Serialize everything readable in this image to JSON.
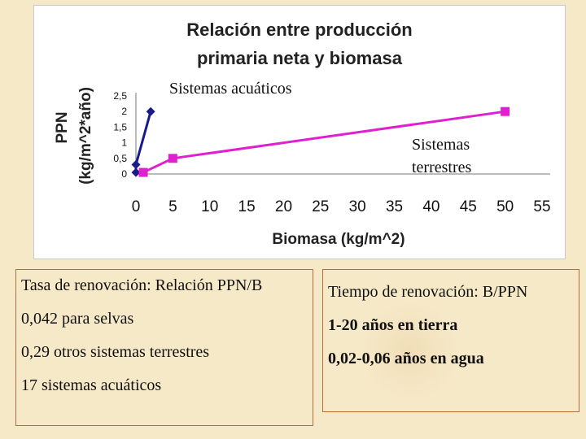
{
  "chart_data": {
    "type": "line",
    "title": [
      "Relación entre producción",
      "primaria neta y biomasa"
    ],
    "xlabel": "Biomasa (kg/m^2)",
    "ylabel": [
      "PPN",
      "(kg/m^2*año)"
    ],
    "xlim": [
      0,
      55
    ],
    "ylim": [
      0,
      2.5
    ],
    "xticks": [
      "0",
      "5",
      "10",
      "15",
      "20",
      "25",
      "30",
      "35",
      "40",
      "45",
      "50",
      "55"
    ],
    "yticks": [
      "0",
      "0,5",
      "1",
      "1,5",
      "2",
      "2,5"
    ],
    "series": [
      {
        "name": "Sistemas acuáticos",
        "color": "#1a1a8c",
        "marker": "diamond",
        "x": [
          0,
          0,
          2
        ],
        "y": [
          0.05,
          0.3,
          2.0
        ]
      },
      {
        "name": [
          "Sistemas",
          "terrestres"
        ],
        "color": "#e020d0",
        "marker": "square",
        "x": [
          1,
          5,
          50
        ],
        "y": [
          0.05,
          0.5,
          2.0
        ]
      }
    ],
    "grid": false,
    "legend": "none"
  },
  "box_left": {
    "heading": "Tasa de renovación: Relación PPN/B",
    "lines": [
      "0,042 para selvas",
      "0,29 otros sistemas terrestres",
      "17 sistemas acuáticos"
    ]
  },
  "box_right": {
    "heading": "Tiempo de renovación: B/PPN",
    "lines": [
      "1-20 años en tierra",
      "0,02-0,06 años en agua"
    ]
  }
}
